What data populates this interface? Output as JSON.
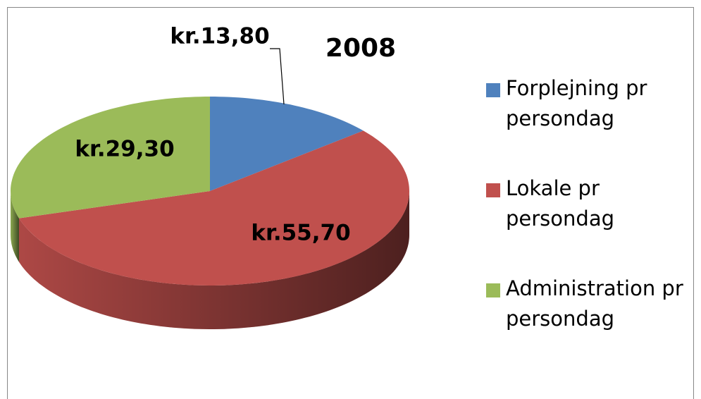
{
  "chart_data": {
    "type": "pie",
    "title": "2008",
    "categories": [
      "Forplejning pr persondag",
      "Lokale pr persondag",
      "Administration pr persondag"
    ],
    "values": [
      13.8,
      55.7,
      29.3
    ],
    "value_labels": [
      "kr.13,80",
      "kr.55,70",
      "kr.29,30"
    ],
    "colors": [
      "#4f81bd",
      "#c0504d",
      "#9bbb59"
    ],
    "legend": "right"
  }
}
